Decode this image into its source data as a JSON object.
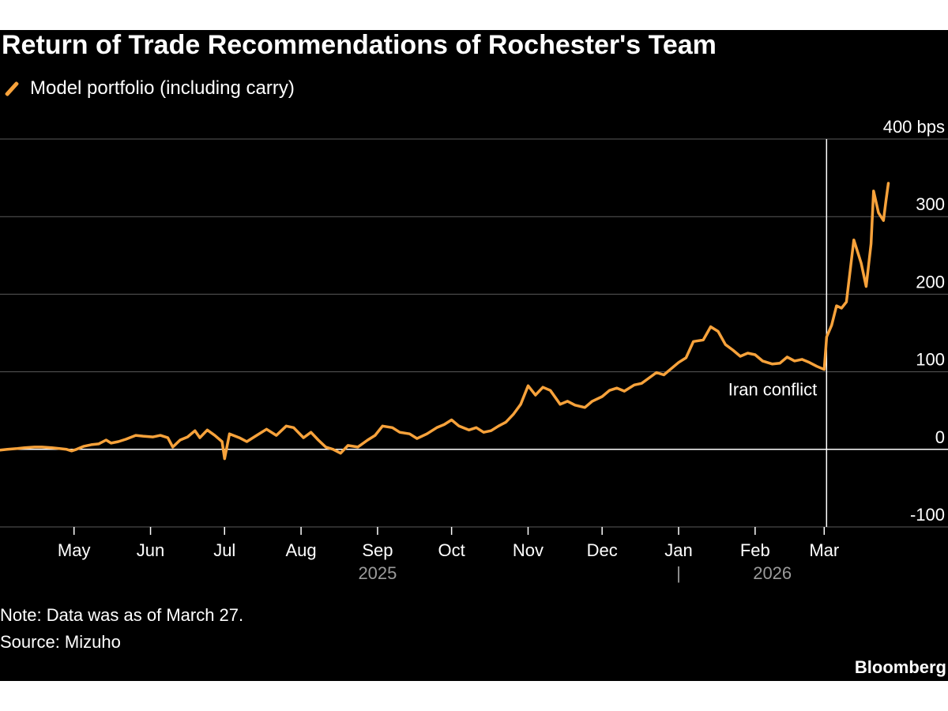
{
  "title": "Return of Trade Recommendations of Rochester's Team",
  "legend": {
    "label": "Model portfolio (including carry)",
    "color": "#f7a23b"
  },
  "colors": {
    "background": "#000000",
    "text": "#ffffff",
    "grid": "#5a5a5a",
    "zero_line": "#ffffff",
    "line": "#f7a23b",
    "muted": "#9a9a9a"
  },
  "note": "Note: Data was as of March 27.",
  "source": "Source: Mizuho",
  "brand": "Bloomberg",
  "chart_data": {
    "type": "line",
    "title": "Return of Trade Recommendations of Rochester's Team",
    "ylabel": "bps",
    "ylim": [
      -100,
      400
    ],
    "yticks": [
      {
        "value": 400,
        "label": "400 bps"
      },
      {
        "value": 300,
        "label": "300"
      },
      {
        "value": 200,
        "label": "200"
      },
      {
        "value": 100,
        "label": "100"
      },
      {
        "value": 0,
        "label": "0"
      },
      {
        "value": -100,
        "label": "-100"
      }
    ],
    "xlim": [
      "2025-04-01",
      "2026-03-31"
    ],
    "xticks": [
      {
        "date": "2025-05-01",
        "label": "May"
      },
      {
        "date": "2025-06-01",
        "label": "Jun"
      },
      {
        "date": "2025-07-01",
        "label": "Jul"
      },
      {
        "date": "2025-08-01",
        "label": "Aug"
      },
      {
        "date": "2025-09-01",
        "label": "Sep"
      },
      {
        "date": "2025-10-01",
        "label": "Oct"
      },
      {
        "date": "2025-11-01",
        "label": "Nov"
      },
      {
        "date": "2025-12-01",
        "label": "Dec"
      },
      {
        "date": "2026-01-01",
        "label": "Jan"
      },
      {
        "date": "2026-02-01",
        "label": "Feb"
      },
      {
        "date": "2026-03-01",
        "label": "Mar"
      }
    ],
    "year_labels": [
      {
        "date": "2025-09-01",
        "label": "2025"
      },
      {
        "date": "2026-02-08",
        "label": "2026"
      }
    ],
    "year_divider": {
      "date": "2026-01-01",
      "label": "|"
    },
    "annotation": {
      "date": "2026-03-01",
      "label": "Iran conflict"
    },
    "grid": true,
    "legend_position": "top-left",
    "series": [
      {
        "name": "Model portfolio (including carry)",
        "points": [
          [
            "2025-04-01",
            -1
          ],
          [
            "2025-04-04",
            0
          ],
          [
            "2025-04-08",
            1
          ],
          [
            "2025-04-11",
            2
          ],
          [
            "2025-04-15",
            3
          ],
          [
            "2025-04-18",
            3
          ],
          [
            "2025-04-22",
            2
          ],
          [
            "2025-04-25",
            1
          ],
          [
            "2025-04-28",
            0
          ],
          [
            "2025-04-30",
            -2
          ],
          [
            "2025-05-02",
            0
          ],
          [
            "2025-05-05",
            4
          ],
          [
            "2025-05-08",
            6
          ],
          [
            "2025-05-11",
            7
          ],
          [
            "2025-05-14",
            12
          ],
          [
            "2025-05-16",
            8
          ],
          [
            "2025-05-19",
            10
          ],
          [
            "2025-05-22",
            13
          ],
          [
            "2025-05-26",
            18
          ],
          [
            "2025-05-29",
            17
          ],
          [
            "2025-06-02",
            16
          ],
          [
            "2025-06-05",
            18
          ],
          [
            "2025-06-08",
            15
          ],
          [
            "2025-06-10",
            3
          ],
          [
            "2025-06-13",
            12
          ],
          [
            "2025-06-16",
            16
          ],
          [
            "2025-06-19",
            24
          ],
          [
            "2025-06-21",
            15
          ],
          [
            "2025-06-24",
            25
          ],
          [
            "2025-06-27",
            18
          ],
          [
            "2025-06-30",
            10
          ],
          [
            "2025-07-01",
            -12
          ],
          [
            "2025-07-03",
            20
          ],
          [
            "2025-07-07",
            15
          ],
          [
            "2025-07-10",
            10
          ],
          [
            "2025-07-14",
            18
          ],
          [
            "2025-07-18",
            26
          ],
          [
            "2025-07-22",
            18
          ],
          [
            "2025-07-26",
            30
          ],
          [
            "2025-07-29",
            28
          ],
          [
            "2025-08-02",
            15
          ],
          [
            "2025-08-05",
            22
          ],
          [
            "2025-08-08",
            12
          ],
          [
            "2025-08-11",
            3
          ],
          [
            "2025-08-14",
            0
          ],
          [
            "2025-08-17",
            -5
          ],
          [
            "2025-08-20",
            5
          ],
          [
            "2025-08-24",
            3
          ],
          [
            "2025-08-28",
            12
          ],
          [
            "2025-08-31",
            18
          ],
          [
            "2025-09-03",
            30
          ],
          [
            "2025-09-07",
            28
          ],
          [
            "2025-09-10",
            22
          ],
          [
            "2025-09-14",
            20
          ],
          [
            "2025-09-17",
            14
          ],
          [
            "2025-09-21",
            20
          ],
          [
            "2025-09-25",
            28
          ],
          [
            "2025-09-28",
            32
          ],
          [
            "2025-10-01",
            38
          ],
          [
            "2025-10-04",
            30
          ],
          [
            "2025-10-08",
            25
          ],
          [
            "2025-10-11",
            28
          ],
          [
            "2025-10-14",
            22
          ],
          [
            "2025-10-17",
            24
          ],
          [
            "2025-10-20",
            30
          ],
          [
            "2025-10-23",
            35
          ],
          [
            "2025-10-26",
            45
          ],
          [
            "2025-10-29",
            58
          ],
          [
            "2025-11-01",
            82
          ],
          [
            "2025-11-04",
            70
          ],
          [
            "2025-11-07",
            80
          ],
          [
            "2025-11-10",
            76
          ],
          [
            "2025-11-14",
            58
          ],
          [
            "2025-11-17",
            62
          ],
          [
            "2025-11-20",
            57
          ],
          [
            "2025-11-24",
            54
          ],
          [
            "2025-11-27",
            62
          ],
          [
            "2025-12-01",
            68
          ],
          [
            "2025-12-04",
            76
          ],
          [
            "2025-12-07",
            79
          ],
          [
            "2025-12-10",
            75
          ],
          [
            "2025-12-14",
            83
          ],
          [
            "2025-12-17",
            85
          ],
          [
            "2025-12-20",
            92
          ],
          [
            "2025-12-23",
            99
          ],
          [
            "2025-12-26",
            96
          ],
          [
            "2025-12-29",
            104
          ],
          [
            "2026-01-01",
            112
          ],
          [
            "2026-01-04",
            118
          ],
          [
            "2026-01-07",
            139
          ],
          [
            "2026-01-11",
            141
          ],
          [
            "2026-01-14",
            158
          ],
          [
            "2026-01-17",
            152
          ],
          [
            "2026-01-20",
            135
          ],
          [
            "2026-01-23",
            128
          ],
          [
            "2026-01-26",
            120
          ],
          [
            "2026-01-29",
            124
          ],
          [
            "2026-02-01",
            122
          ],
          [
            "2026-02-04",
            114
          ],
          [
            "2026-02-08",
            110
          ],
          [
            "2026-02-11",
            111
          ],
          [
            "2026-02-14",
            119
          ],
          [
            "2026-02-17",
            114
          ],
          [
            "2026-02-20",
            116
          ],
          [
            "2026-02-23",
            112
          ],
          [
            "2026-02-26",
            107
          ],
          [
            "2026-03-01",
            103
          ],
          [
            "2026-03-02",
            145
          ],
          [
            "2026-03-04",
            160
          ],
          [
            "2026-03-06",
            185
          ],
          [
            "2026-03-08",
            182
          ],
          [
            "2026-03-10",
            190
          ],
          [
            "2026-03-13",
            270
          ],
          [
            "2026-03-16",
            240
          ],
          [
            "2026-03-18",
            210
          ],
          [
            "2026-03-20",
            265
          ],
          [
            "2026-03-21",
            333
          ],
          [
            "2026-03-23",
            305
          ],
          [
            "2026-03-25",
            295
          ],
          [
            "2026-03-26",
            320
          ],
          [
            "2026-03-27",
            343
          ]
        ]
      }
    ]
  }
}
